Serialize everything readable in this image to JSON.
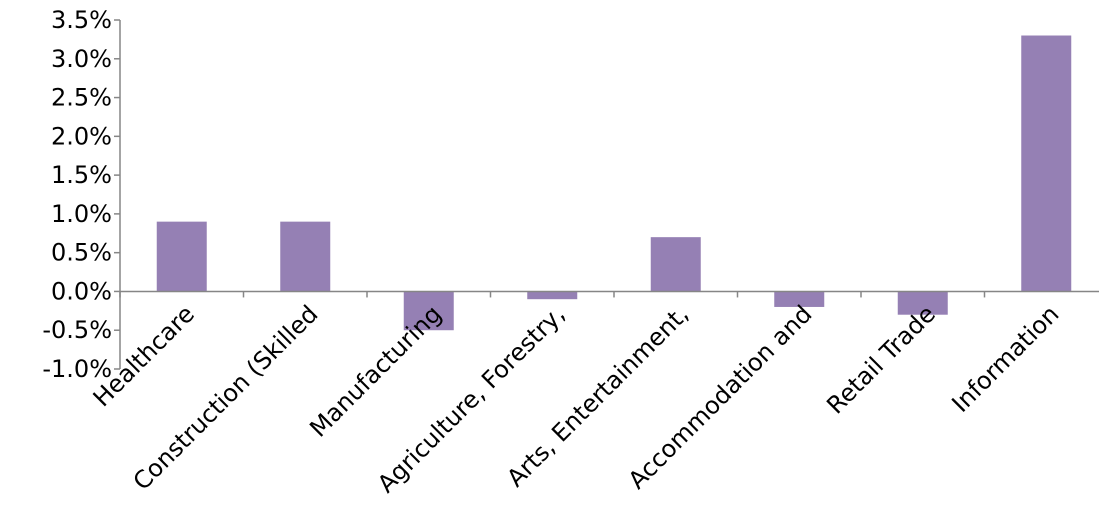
{
  "chart_data": {
    "type": "bar",
    "title": "",
    "xlabel": "",
    "ylabel": "",
    "categories": [
      "Healthcare",
      "Construction (Skilled",
      "Manufacturing",
      "Agriculture, Forestry,",
      "Arts, Entertainment,",
      "Accommodation and",
      "Retail Trade",
      "Information"
    ],
    "values": [
      0.9,
      0.9,
      -0.5,
      -0.1,
      0.7,
      -0.2,
      -0.3,
      3.3
    ],
    "value_unit": "%",
    "ylim": [
      -1.0,
      3.5
    ],
    "y_ticks": [
      -1.0,
      -0.5,
      0.0,
      0.5,
      1.0,
      1.5,
      2.0,
      2.5,
      3.0,
      3.5
    ],
    "y_tick_labels": [
      "-1.0%",
      "-0.5%",
      "0.0%",
      "0.5%",
      "1.0%",
      "1.5%",
      "2.0%",
      "2.5%",
      "3.0%",
      "3.5%"
    ],
    "grid": false,
    "legend": "none",
    "bar_color": "#9580b4",
    "axis_color": "#868686"
  }
}
